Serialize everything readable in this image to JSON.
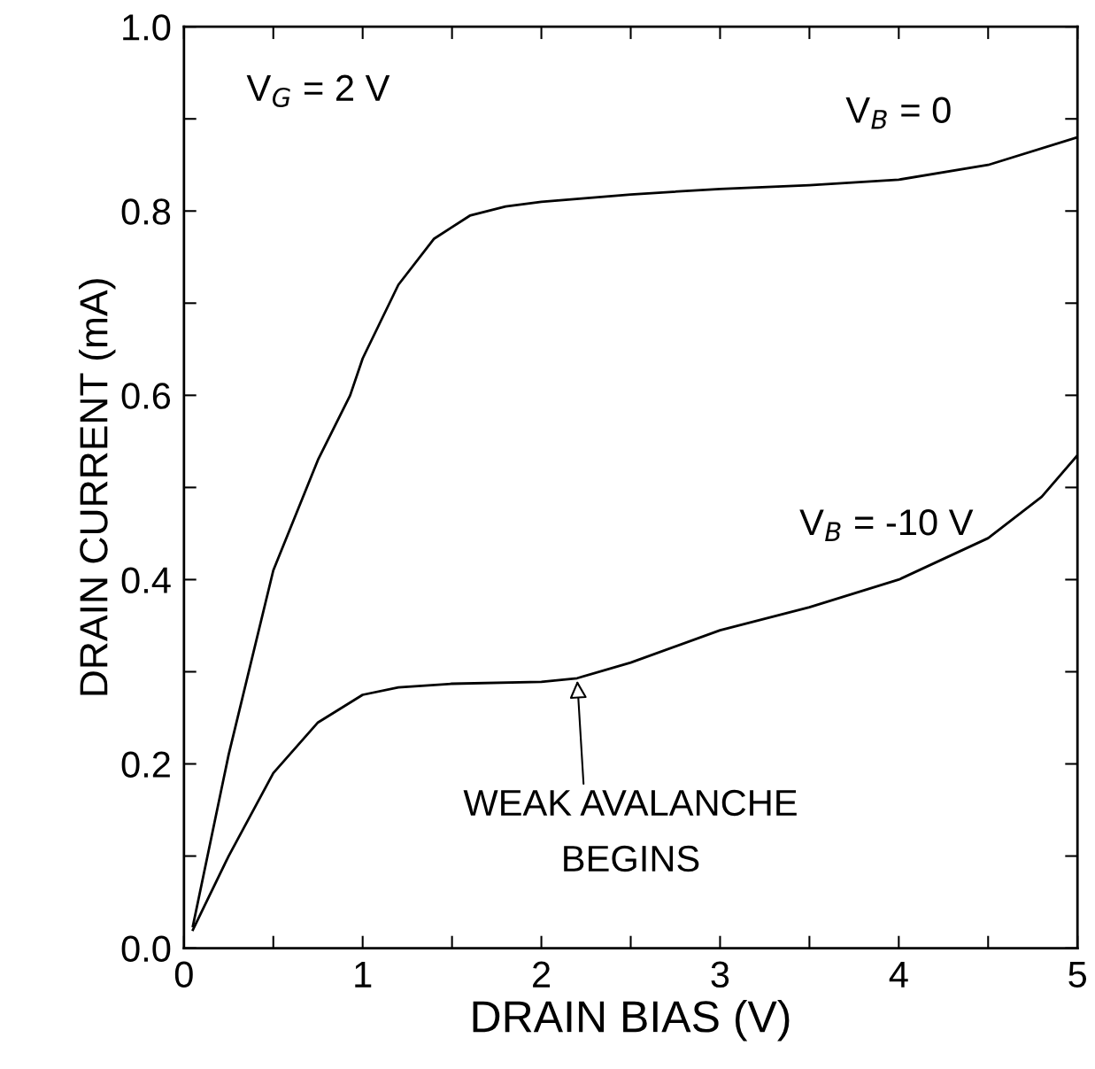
{
  "chart_data": {
    "type": "line",
    "xlabel": "DRAIN BIAS (V)",
    "ylabel": "DRAIN CURRENT (mA)",
    "xlim": [
      0,
      5
    ],
    "ylim": [
      0,
      1.0
    ],
    "xticks": [
      0,
      {
        "value": 0.5,
        "label": null
      },
      1,
      {
        "value": 1.5,
        "label": null
      },
      2,
      {
        "value": 2.5,
        "label": null
      },
      3,
      {
        "value": 3.5,
        "label": null
      },
      4,
      {
        "value": 4.5,
        "label": null
      },
      5
    ],
    "yticks": [
      {
        "value": 0,
        "label": "0.0"
      },
      {
        "value": 0.1,
        "label": null
      },
      0.2,
      {
        "value": 0.3,
        "label": null
      },
      0.4,
      {
        "value": 0.5,
        "label": null
      },
      0.6,
      {
        "value": 0.7,
        "label": null
      },
      0.8,
      {
        "value": 0.9,
        "label": null
      },
      {
        "value": 1.0,
        "label": "1.0"
      }
    ],
    "grid": false,
    "legend": false,
    "marker": "none",
    "line_style": "solid",
    "series": [
      {
        "name": "V$_{B}$ = 0",
        "color": "#000000",
        "x": [
          0.05,
          0.25,
          0.5,
          0.75,
          0.93,
          1.0,
          1.2,
          1.4,
          1.6,
          1.8,
          2.0,
          2.5,
          3.0,
          3.5,
          4.0,
          4.5,
          5.0
        ],
        "values": [
          0.024,
          0.21,
          0.41,
          0.53,
          0.6,
          0.64,
          0.72,
          0.77,
          0.795,
          0.805,
          0.81,
          0.818,
          0.824,
          0.828,
          0.834,
          0.85,
          0.88
        ]
      },
      {
        "name": "V$_{B}$ = -10 V",
        "color": "#000000",
        "x": [
          0.05,
          0.25,
          0.5,
          0.75,
          1.0,
          1.2,
          1.5,
          2.0,
          2.2,
          2.5,
          3.0,
          3.5,
          4.0,
          4.5,
          4.8,
          5.0
        ],
        "values": [
          0.02,
          0.1,
          0.19,
          0.245,
          0.275,
          0.283,
          0.287,
          0.289,
          0.293,
          0.31,
          0.345,
          0.37,
          0.4,
          0.445,
          0.49,
          0.535
        ]
      }
    ],
    "annotations": [
      "V$_{G}$ = 2 V",
      {
        "text": "WEAK AVALANCHE\nBEGINS",
        "x": 2.2,
        "y": 0.293
      }
    ]
  }
}
